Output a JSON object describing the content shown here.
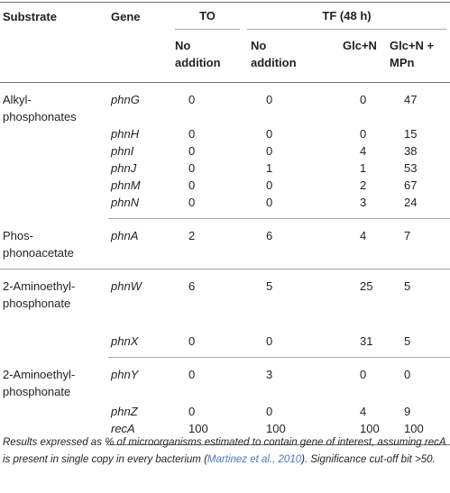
{
  "table": {
    "headers": {
      "substrate": "Substrate",
      "gene": "Gene",
      "to": "TO",
      "tf": "TF (48 h)",
      "conditions": [
        "No addition",
        "No addition",
        "Glc+N",
        "Glc+N + MPn"
      ]
    },
    "groups": [
      {
        "substrate": [
          "Alkyl-",
          "phosphonates"
        ],
        "rows": [
          {
            "gene": "phnG",
            "values": [
              0,
              0,
              0,
              47
            ]
          },
          {
            "gene": "phnH",
            "values": [
              0,
              0,
              0,
              15
            ]
          },
          {
            "gene": "phnI",
            "values": [
              0,
              0,
              4,
              38
            ]
          },
          {
            "gene": "phnJ",
            "values": [
              0,
              1,
              1,
              53
            ]
          },
          {
            "gene": "phnM",
            "values": [
              0,
              0,
              2,
              67
            ]
          },
          {
            "gene": "phnN",
            "values": [
              0,
              0,
              3,
              24
            ]
          }
        ]
      },
      {
        "substrate": [
          "Phos-",
          "phonoacetate"
        ],
        "rows": [
          {
            "gene": "phnA",
            "values": [
              2,
              6,
              4,
              7
            ]
          }
        ]
      },
      {
        "substrate": [
          "2-Aminoethyl-",
          "phosphonate"
        ],
        "rows": [
          {
            "gene": "phnW",
            "values": [
              6,
              5,
              25,
              5
            ]
          },
          {
            "gene": "phnX",
            "values": [
              0,
              0,
              31,
              5
            ]
          }
        ]
      },
      {
        "substrate": [
          "2-Aminoethyl-",
          "phosphonate"
        ],
        "rows": [
          {
            "gene": "phnY",
            "values": [
              0,
              3,
              0,
              0
            ]
          },
          {
            "gene": "phnZ",
            "values": [
              0,
              0,
              4,
              9
            ]
          },
          {
            "gene": "recA",
            "values": [
              100,
              100,
              100,
              100
            ]
          }
        ]
      }
    ]
  },
  "footnote": {
    "before": "Results expressed as % of microorganisms estimated to contain gene of interest, assuming recA is present in single copy in every bacterium (",
    "citation": "Martinez et al., 2010",
    "after": "). Significance cut-off bit >50."
  }
}
